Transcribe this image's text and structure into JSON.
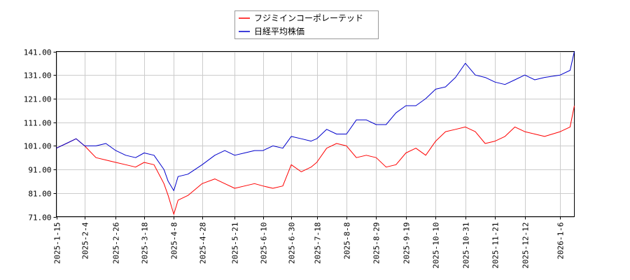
{
  "chart_data": {
    "type": "line",
    "title": "",
    "xlabel": "",
    "ylabel": "",
    "ylim": [
      71,
      141
    ],
    "y_ticks": [
      "141.00",
      "131.00",
      "121.00",
      "111.00",
      "101.00",
      "91.00",
      "81.00",
      "71.00"
    ],
    "x_ticks": [
      "2025-1-15",
      "2025-2-4",
      "2025-2-26",
      "2025-3-18",
      "2025-4-8",
      "2025-4-28",
      "2025-5-21",
      "2025-6-10",
      "2025-6-30",
      "2025-7-18",
      "2025-8-8",
      "2025-8-29",
      "2025-9-19",
      "2025-10-10",
      "2025-10-31",
      "2025-11-21",
      "2025-12-12",
      "2026-1-6"
    ],
    "grid": true,
    "legend_position": "top-center",
    "series": [
      {
        "name": "フジミインコーポレーテッド",
        "color": "#ff0000",
        "x": [
          "2025-1-15",
          "2025-1-22",
          "2025-1-29",
          "2025-2-4",
          "2025-2-12",
          "2025-2-19",
          "2025-2-26",
          "2025-3-5",
          "2025-3-12",
          "2025-3-18",
          "2025-3-25",
          "2025-4-1",
          "2025-4-4",
          "2025-4-8",
          "2025-4-11",
          "2025-4-18",
          "2025-4-28",
          "2025-5-7",
          "2025-5-14",
          "2025-5-21",
          "2025-5-28",
          "2025-6-4",
          "2025-6-10",
          "2025-6-17",
          "2025-6-24",
          "2025-6-30",
          "2025-7-7",
          "2025-7-14",
          "2025-7-18",
          "2025-7-25",
          "2025-8-1",
          "2025-8-8",
          "2025-8-15",
          "2025-8-22",
          "2025-8-29",
          "2025-9-5",
          "2025-9-12",
          "2025-9-19",
          "2025-9-26",
          "2025-10-3",
          "2025-10-10",
          "2025-10-17",
          "2025-10-24",
          "2025-10-31",
          "2025-11-7",
          "2025-11-14",
          "2025-11-21",
          "2025-11-28",
          "2025-12-5",
          "2025-12-12",
          "2025-12-19",
          "2025-12-26",
          "2026-1-6",
          "2026-1-13",
          "2026-1-16"
        ],
        "values": [
          100,
          102,
          104,
          101,
          96,
          95,
          94,
          93,
          92,
          94,
          93,
          85,
          80,
          72,
          78,
          80,
          85,
          87,
          85,
          83,
          84,
          85,
          84,
          83,
          84,
          93,
          90,
          92,
          94,
          100,
          102,
          101,
          96,
          97,
          96,
          92,
          93,
          98,
          100,
          97,
          103,
          107,
          108,
          109,
          107,
          102,
          103,
          105,
          109,
          107,
          106,
          105,
          107,
          109,
          118
        ]
      },
      {
        "name": "日経平均株価",
        "color": "#0000cc",
        "x": [
          "2025-1-15",
          "2025-1-22",
          "2025-1-29",
          "2025-2-4",
          "2025-2-12",
          "2025-2-19",
          "2025-2-26",
          "2025-3-5",
          "2025-3-12",
          "2025-3-18",
          "2025-3-25",
          "2025-4-1",
          "2025-4-4",
          "2025-4-8",
          "2025-4-11",
          "2025-4-18",
          "2025-4-28",
          "2025-5-7",
          "2025-5-14",
          "2025-5-21",
          "2025-5-28",
          "2025-6-4",
          "2025-6-10",
          "2025-6-17",
          "2025-6-24",
          "2025-6-30",
          "2025-7-7",
          "2025-7-14",
          "2025-7-18",
          "2025-7-25",
          "2025-8-1",
          "2025-8-8",
          "2025-8-15",
          "2025-8-22",
          "2025-8-29",
          "2025-9-5",
          "2025-9-12",
          "2025-9-19",
          "2025-9-26",
          "2025-10-3",
          "2025-10-10",
          "2025-10-17",
          "2025-10-24",
          "2025-10-31",
          "2025-11-7",
          "2025-11-14",
          "2025-11-21",
          "2025-11-28",
          "2025-12-5",
          "2025-12-12",
          "2025-12-19",
          "2025-12-26",
          "2026-1-6",
          "2026-1-13",
          "2026-1-16"
        ],
        "values": [
          100,
          102,
          104,
          101,
          101,
          102,
          99,
          97,
          96,
          98,
          97,
          91,
          86,
          82,
          88,
          89,
          93,
          97,
          99,
          97,
          98,
          99,
          99,
          101,
          100,
          105,
          104,
          103,
          104,
          108,
          106,
          106,
          112,
          112,
          110,
          110,
          115,
          118,
          118,
          121,
          125,
          126,
          130,
          136,
          131,
          130,
          128,
          127,
          129,
          131,
          129,
          130,
          131,
          133,
          141
        ]
      }
    ]
  }
}
